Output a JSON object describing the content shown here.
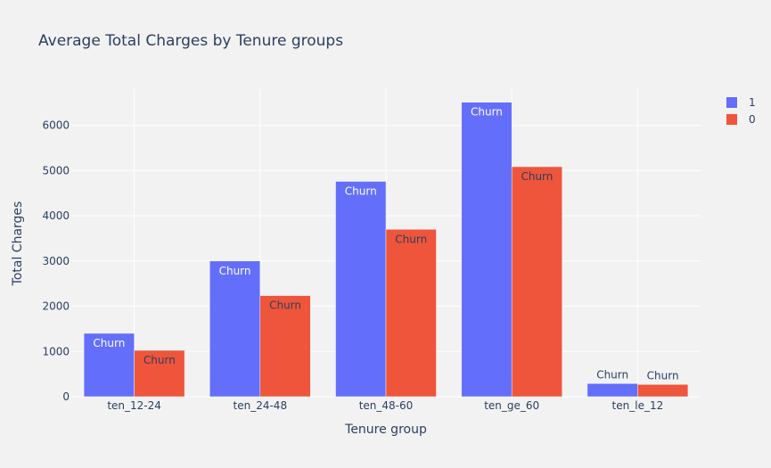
{
  "chart_data": {
    "type": "bar",
    "title": "Average Total Charges by Tenure groups",
    "xlabel": "Tenure group",
    "ylabel": "Total Charges",
    "categories": [
      "ten_12-24",
      "ten_24-48",
      "ten_48-60",
      "ten_ge_60",
      "ten_le_12"
    ],
    "series": [
      {
        "name": "1",
        "color": "#636efa",
        "values": [
          1400,
          3000,
          4760,
          6510,
          290
        ],
        "text": "Churn"
      },
      {
        "name": "0",
        "color": "#ef553b",
        "values": [
          1025,
          2235,
          3700,
          5085,
          270
        ],
        "text": "Churn"
      }
    ],
    "ylim": [
      0,
      6800
    ],
    "yticks": [
      0,
      1000,
      2000,
      3000,
      4000,
      5000,
      6000
    ],
    "grid": true,
    "legend_position": "top-right",
    "plot_bg": "#f2f2f2",
    "grid_color": "#ffffff"
  }
}
